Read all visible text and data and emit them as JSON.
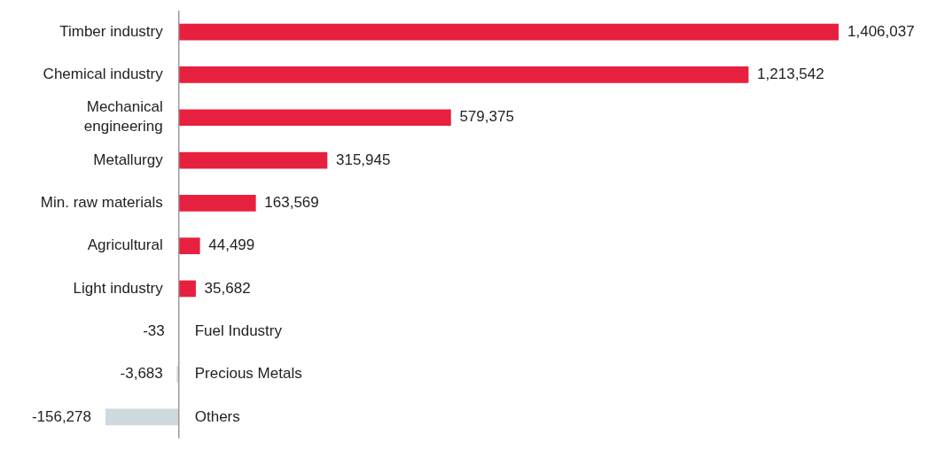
{
  "chart_data": {
    "type": "bar",
    "orientation": "horizontal",
    "categories": [
      "Timber industry",
      "Chemical industry",
      "Mechanical engineering",
      "Metallurgy",
      "Min. raw materials",
      "Agricultural",
      "Light industry",
      "Fuel Industry",
      "Precious Metals",
      "Others"
    ],
    "values": [
      1406037,
      1213542,
      579375,
      315945,
      163569,
      44499,
      35682,
      -33,
      -3683,
      -156278
    ],
    "colors": [
      "#e8203f",
      "#e8203f",
      "#e8203f",
      "#e8203f",
      "#e8203f",
      "#e8203f",
      "#e8203f",
      "#cfd8dd",
      "#cfd8dd",
      "#cfd8dd"
    ],
    "value_labels": [
      "1,406,037",
      "1,213,542",
      "579,375",
      "315,945",
      "163,569",
      "44,499",
      "35,682",
      "-33",
      "-3,683",
      "-156,278"
    ]
  }
}
